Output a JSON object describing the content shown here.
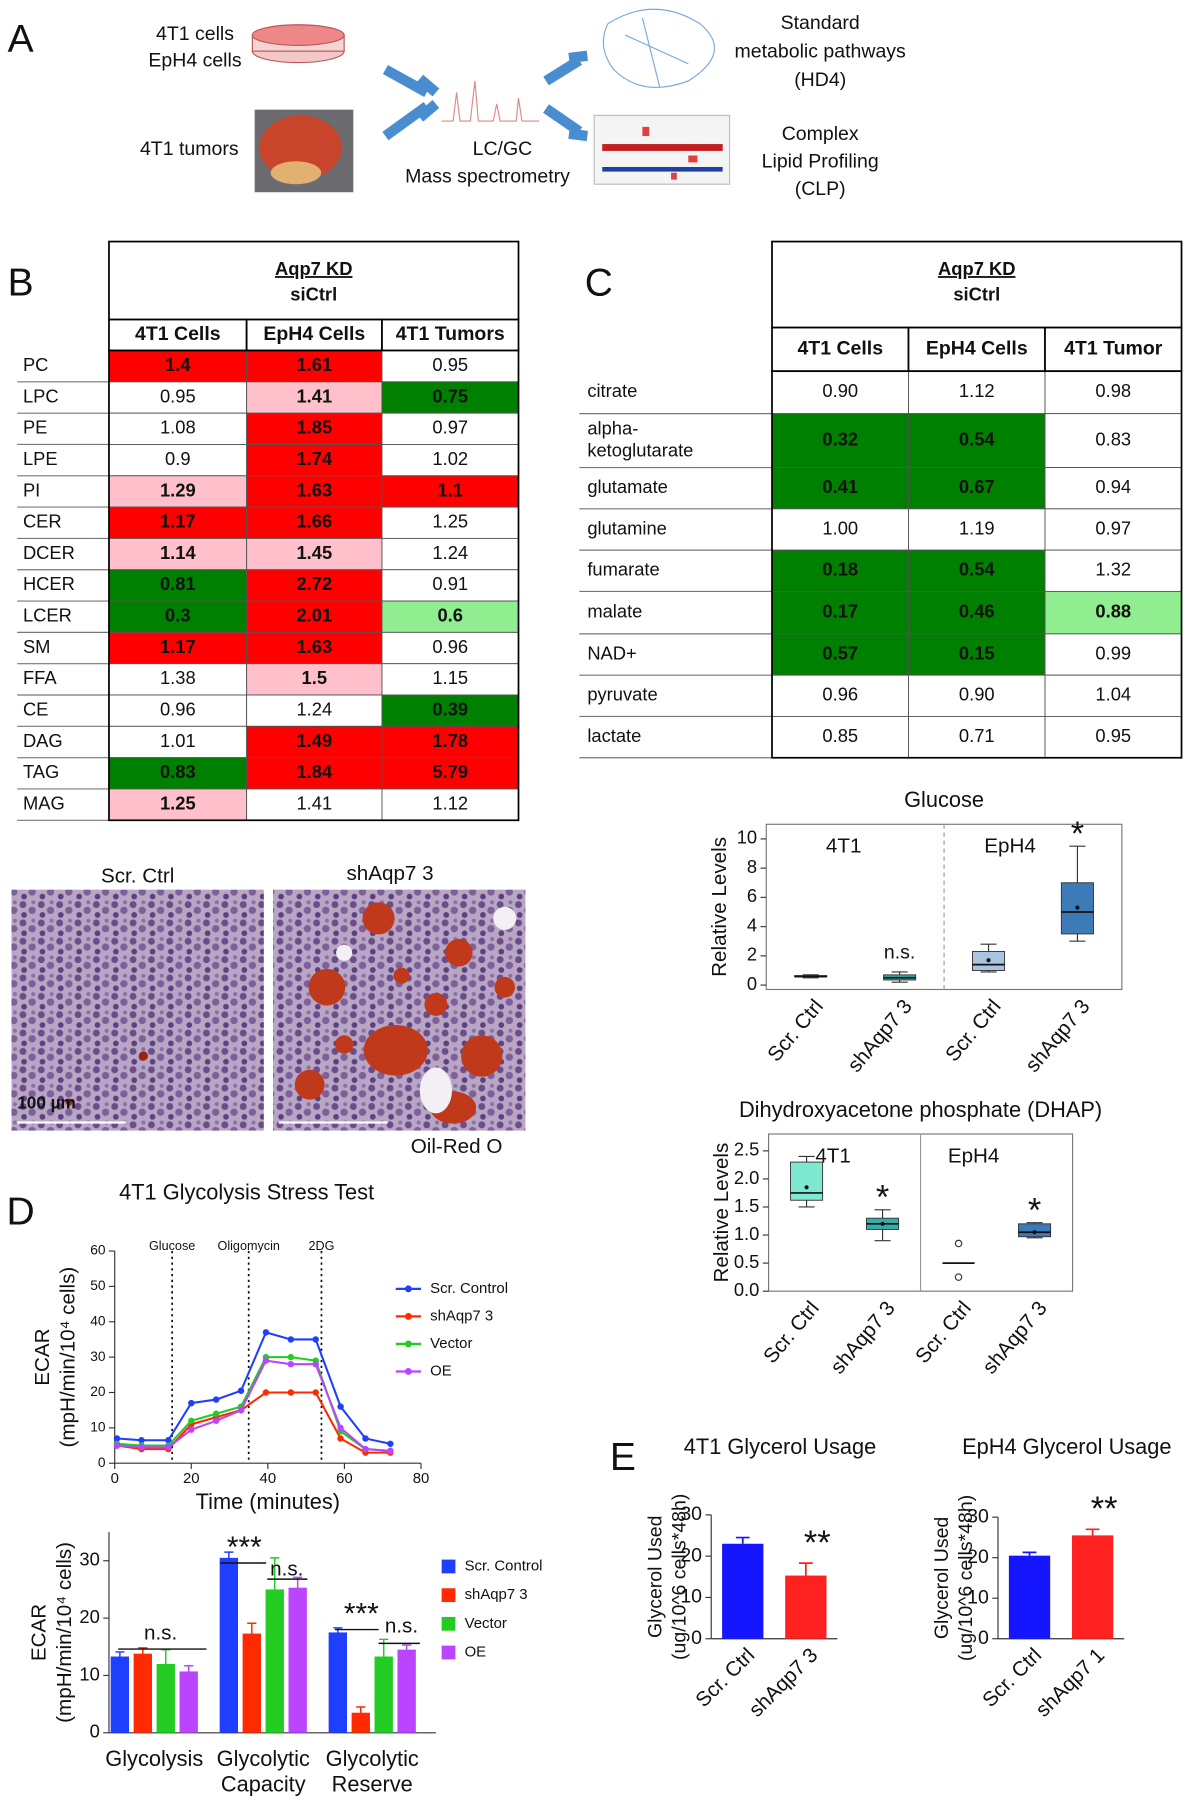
{
  "panel_labels": [
    "A",
    "B",
    "C",
    "D",
    "E"
  ],
  "panel_a": {
    "inputs": [
      "4T1 cells",
      "EpH4 cells",
      "4T1 tumors"
    ],
    "method": [
      "LC/GC",
      "Mass spectrometry"
    ],
    "outputs": [
      [
        "Standard",
        "metabolic pathways",
        "(HD4)"
      ],
      [
        "Complex",
        "Lipid Profiling",
        "(CLP)"
      ]
    ]
  },
  "table_b": {
    "header": [
      "Aqp7 KD",
      "siCtrl"
    ],
    "columns": [
      "4T1 Cells",
      "EpH4 Cells",
      "4T1 Tumors"
    ],
    "rows": [
      {
        "label": "PC",
        "cells": [
          "1.4",
          "1.61",
          "0.95"
        ],
        "fills": [
          "#ff0000",
          "#ff0000",
          "#ffffff"
        ]
      },
      {
        "label": "LPC",
        "cells": [
          "0.95",
          "1.41",
          "0.75"
        ],
        "fills": [
          "#ffffff",
          "#ffc0cb",
          "#008000"
        ]
      },
      {
        "label": "PE",
        "cells": [
          "1.08",
          "1.85",
          "0.97"
        ],
        "fills": [
          "#ffffff",
          "#ff0000",
          "#ffffff"
        ]
      },
      {
        "label": "LPE",
        "cells": [
          "0.9",
          "1.74",
          "1.02"
        ],
        "fills": [
          "#ffffff",
          "#ff0000",
          "#ffffff"
        ]
      },
      {
        "label": "PI",
        "cells": [
          "1.29",
          "1.63",
          "1.1"
        ],
        "fills": [
          "#ffc0cb",
          "#ff0000",
          "#ff0000"
        ]
      },
      {
        "label": "CER",
        "cells": [
          "1.17",
          "1.66",
          "1.25"
        ],
        "fills": [
          "#ff0000",
          "#ff0000",
          "#ffffff"
        ]
      },
      {
        "label": "DCER",
        "cells": [
          "1.14",
          "1.45",
          "1.24"
        ],
        "fills": [
          "#ffc0cb",
          "#ffc0cb",
          "#ffffff"
        ]
      },
      {
        "label": "HCER",
        "cells": [
          "0.81",
          "2.72",
          "0.91"
        ],
        "fills": [
          "#008000",
          "#ff0000",
          "#ffffff"
        ]
      },
      {
        "label": "LCER",
        "cells": [
          "0.3",
          "2.01",
          "0.6"
        ],
        "fills": [
          "#008000",
          "#ff0000",
          "#90ee90"
        ]
      },
      {
        "label": "SM",
        "cells": [
          "1.17",
          "1.63",
          "0.96"
        ],
        "fills": [
          "#ff0000",
          "#ff0000",
          "#ffffff"
        ]
      },
      {
        "label": "FFA",
        "cells": [
          "1.38",
          "1.5",
          "1.15"
        ],
        "fills": [
          "#ffffff",
          "#ffc0cb",
          "#ffffff"
        ]
      },
      {
        "label": "CE",
        "cells": [
          "0.96",
          "1.24",
          "0.39"
        ],
        "fills": [
          "#ffffff",
          "#ffffff",
          "#008000"
        ]
      },
      {
        "label": "DAG",
        "cells": [
          "1.01",
          "1.49",
          "1.78"
        ],
        "fills": [
          "#ffffff",
          "#ff0000",
          "#ff0000"
        ]
      },
      {
        "label": "TAG",
        "cells": [
          "0.83",
          "1.84",
          "5.79"
        ],
        "fills": [
          "#008000",
          "#ff0000",
          "#ff0000"
        ]
      },
      {
        "label": "MAG",
        "cells": [
          "1.25",
          "1.41",
          "1.12"
        ],
        "fills": [
          "#ffc0cb",
          "#ffffff",
          "#ffffff"
        ]
      }
    ]
  },
  "table_c": {
    "header": [
      "Aqp7 KD",
      "siCtrl"
    ],
    "columns": [
      "4T1 Cells",
      "EpH4 Cells",
      "4T1 Tumor"
    ],
    "rows": [
      {
        "label": [
          "citrate"
        ],
        "cells": [
          "0.90",
          "1.12",
          "0.98"
        ],
        "fills": [
          "#ffffff",
          "#ffffff",
          "#ffffff"
        ]
      },
      {
        "label": [
          "alpha-",
          "ketoglutarate"
        ],
        "cells": [
          "0.32",
          "0.54",
          "0.83"
        ],
        "fills": [
          "#008000",
          "#008000",
          "#ffffff"
        ]
      },
      {
        "label": [
          "glutamate"
        ],
        "cells": [
          "0.41",
          "0.67",
          "0.94"
        ],
        "fills": [
          "#008000",
          "#008000",
          "#ffffff"
        ]
      },
      {
        "label": [
          "glutamine"
        ],
        "cells": [
          "1.00",
          "1.19",
          "0.97"
        ],
        "fills": [
          "#ffffff",
          "#ffffff",
          "#ffffff"
        ]
      },
      {
        "label": [
          "fumarate"
        ],
        "cells": [
          "0.18",
          "0.54",
          "1.32"
        ],
        "fills": [
          "#008000",
          "#008000",
          "#ffffff"
        ]
      },
      {
        "label": [
          "malate"
        ],
        "cells": [
          "0.17",
          "0.46",
          "0.88"
        ],
        "fills": [
          "#008000",
          "#008000",
          "#90ee90"
        ]
      },
      {
        "label": [
          "NAD+"
        ],
        "cells": [
          "0.57",
          "0.15",
          "0.99"
        ],
        "fills": [
          "#008000",
          "#008000",
          "#ffffff"
        ]
      },
      {
        "label": [
          "pyruvate"
        ],
        "cells": [
          "0.96",
          "0.90",
          "1.04"
        ],
        "fills": [
          "#ffffff",
          "#ffffff",
          "#ffffff"
        ]
      },
      {
        "label": [
          "lactate"
        ],
        "cells": [
          "0.85",
          "0.71",
          "0.95"
        ],
        "fills": [
          "#ffffff",
          "#ffffff",
          "#ffffff"
        ]
      }
    ]
  },
  "histology": {
    "titles": [
      "Scr. Ctrl",
      "shAqp7 3"
    ],
    "scale_bar": "100 µm",
    "stain": "Oil-Red O"
  },
  "chart_data": [
    {
      "type": "box",
      "title": "Glucose",
      "ylabel": "Relative Levels",
      "groups": [
        "4T1",
        "EpH4"
      ],
      "categories": [
        "Scr. Ctrl",
        "shAqp7 3",
        "Scr. Ctrl",
        "shAqp7 3"
      ],
      "colors": [
        "#3aaca8",
        "#3aaca8",
        "#a8c4e0",
        "#3d7ab8"
      ],
      "boxes": [
        {
          "min": 0.5,
          "q1": 0.55,
          "median": 0.6,
          "q3": 0.65,
          "max": 0.7
        },
        {
          "min": 0.2,
          "q1": 0.35,
          "median": 0.5,
          "q3": 0.7,
          "max": 0.9
        },
        {
          "min": 0.9,
          "q1": 1.0,
          "median": 1.4,
          "q3": 2.3,
          "max": 2.8,
          "mean": 1.7
        },
        {
          "min": 3.0,
          "q1": 3.5,
          "median": 5.0,
          "q3": 7.0,
          "max": 9.5,
          "mean": 5.3
        }
      ],
      "annotations": [
        {
          "index": 1,
          "text": "n.s."
        },
        {
          "index": 3,
          "text": "*"
        }
      ],
      "ylim": [
        -0.3,
        11
      ],
      "yticks": [
        0,
        2,
        4,
        6,
        8,
        10
      ],
      "divider": "dashed"
    },
    {
      "type": "box",
      "title": "Dihydroxyacetone phosphate (DHAP)",
      "ylabel": "Relative Levels",
      "groups": [
        "4T1",
        "EpH4"
      ],
      "categories": [
        "Scr. Ctrl",
        "shAqp7 3",
        "Scr. Ctrl",
        "shAqp7 3"
      ],
      "colors": [
        "#7ee8d0",
        "#3aaca8",
        "#222222",
        "#3d7ab8"
      ],
      "boxes": [
        {
          "min": 1.5,
          "q1": 1.62,
          "median": 1.75,
          "q3": 2.3,
          "max": 2.4,
          "mean": 1.85
        },
        {
          "min": 0.9,
          "q1": 1.1,
          "median": 1.2,
          "q3": 1.3,
          "max": 1.45,
          "mean": 1.2
        },
        {
          "min": 0.5,
          "q1": 0.5,
          "median": 0.5,
          "q3": 0.5,
          "max": 0.5,
          "outliers": [
            0.85,
            0.25
          ]
        },
        {
          "min": 0.95,
          "q1": 0.97,
          "median": 1.05,
          "q3": 1.2,
          "max": 1.22,
          "mean": 1.05
        }
      ],
      "annotations": [
        {
          "index": 1,
          "text": "*"
        },
        {
          "index": 3,
          "text": "*"
        }
      ],
      "ylim": [
        0,
        2.8
      ],
      "yticks": [
        {
          "value": 0,
          "label": "0.0"
        },
        0.5,
        {
          "value": 1,
          "label": "1.0"
        },
        1.5,
        {
          "value": 2,
          "label": "2.0"
        },
        2.5
      ],
      "divider": "solid"
    },
    {
      "type": "line",
      "title": "4T1 Glycolysis Stress Test",
      "xlabel": "Time (minutes)",
      "ylabel": [
        "ECAR",
        "(mpH/min/10⁴ cells)"
      ],
      "x": [
        0.6,
        7,
        14,
        20,
        26.5,
        33,
        39.5,
        46,
        52.5,
        59,
        65.5,
        72
      ],
      "series": [
        {
          "name": "Scr. Control",
          "color": "#1f3fff",
          "values": [
            7,
            6.5,
            6.5,
            17,
            18,
            20.5,
            37,
            35,
            35,
            16,
            7,
            5.5
          ]
        },
        {
          "name": "shAqp7 3",
          "color": "#ff2a00",
          "values": [
            5,
            4,
            4,
            11,
            13,
            15,
            20,
            20,
            20,
            7,
            3,
            3
          ]
        },
        {
          "name": "Vector",
          "color": "#22cc22",
          "values": [
            5.5,
            5,
            5,
            12,
            14,
            16,
            30,
            30,
            29,
            9,
            4,
            3.5
          ]
        },
        {
          "name": "OE",
          "color": "#bb44ff",
          "values": [
            5,
            4.5,
            4.5,
            9.5,
            12,
            15,
            29,
            28,
            28,
            10,
            4,
            3.5
          ]
        }
      ],
      "events": [
        {
          "x": 15,
          "label": "Glucose"
        },
        {
          "x": 35,
          "label": "Oligomycin"
        },
        {
          "x": 54,
          "label": "2DG"
        }
      ],
      "xlim": [
        0,
        80
      ],
      "xticks": [
        0,
        20,
        40,
        60,
        80
      ],
      "ylim": [
        0,
        60
      ],
      "yticks": [
        0,
        10,
        20,
        30,
        40,
        50,
        60
      ],
      "legend": "right"
    },
    {
      "type": "bar",
      "ylabel": [
        "ECAR",
        "(mpH/min/10⁴ cells)"
      ],
      "categories": [
        [
          "Glycolysis"
        ],
        [
          "Glycolytic",
          "Capacity"
        ],
        [
          "Glycolytic",
          "Reserve"
        ]
      ],
      "series": [
        {
          "name": "Scr. Control",
          "color": "#1f3fff",
          "values": [
            13.3,
            30.5,
            17.5
          ],
          "errors": [
            0.8,
            1,
            0.8
          ]
        },
        {
          "name": "shAqp7 3",
          "color": "#ff2a00",
          "values": [
            13.8,
            17.3,
            3.5
          ],
          "errors": [
            1,
            1.8,
            1
          ]
        },
        {
          "name": "Vector",
          "color": "#22cc22",
          "values": [
            12,
            25,
            13.3
          ],
          "errors": [
            2.5,
            5.5,
            3
          ]
        },
        {
          "name": "OE",
          "color": "#bb44ff",
          "values": [
            10.7,
            25.3,
            14.5
          ],
          "errors": [
            1,
            1.8,
            0.8
          ]
        }
      ],
      "annotations": [
        "n.s.",
        "***",
        "n.s.",
        "***",
        "n.s."
      ],
      "ylim": [
        0,
        35
      ],
      "yticks": [
        0,
        10,
        20,
        30
      ],
      "legend": "right"
    },
    {
      "type": "bar",
      "title": "4T1 Glycerol Usage",
      "ylabel": [
        "Glycerol Used",
        "(ug/10^6 cells*48h)"
      ],
      "categories": [
        "Scr. Ctrl",
        "shAqp7 3"
      ],
      "values": [
        23,
        15.3
      ],
      "errors": [
        1.5,
        3
      ],
      "colors": [
        "#1515ff",
        "#ff2020"
      ],
      "annotations": [
        {
          "index": 1,
          "text": "**"
        }
      ],
      "ylim": [
        0,
        30
      ],
      "yticks": [
        0,
        10,
        20,
        30
      ]
    },
    {
      "type": "bar",
      "title": "EpH4 Glycerol Usage",
      "ylabel": [
        "Glycerol Used",
        "(ug/10^6 cells*48h)"
      ],
      "categories": [
        "Scr. Ctrl",
        "shAqp7 1"
      ],
      "values": [
        20.5,
        25.5
      ],
      "errors": [
        0.8,
        1.5
      ],
      "colors": [
        "#1515ff",
        "#ff2020"
      ],
      "annotations": [
        {
          "index": 1,
          "text": "**"
        }
      ],
      "ylim": [
        0,
        30
      ],
      "yticks": [
        0,
        10,
        20,
        30
      ]
    }
  ]
}
